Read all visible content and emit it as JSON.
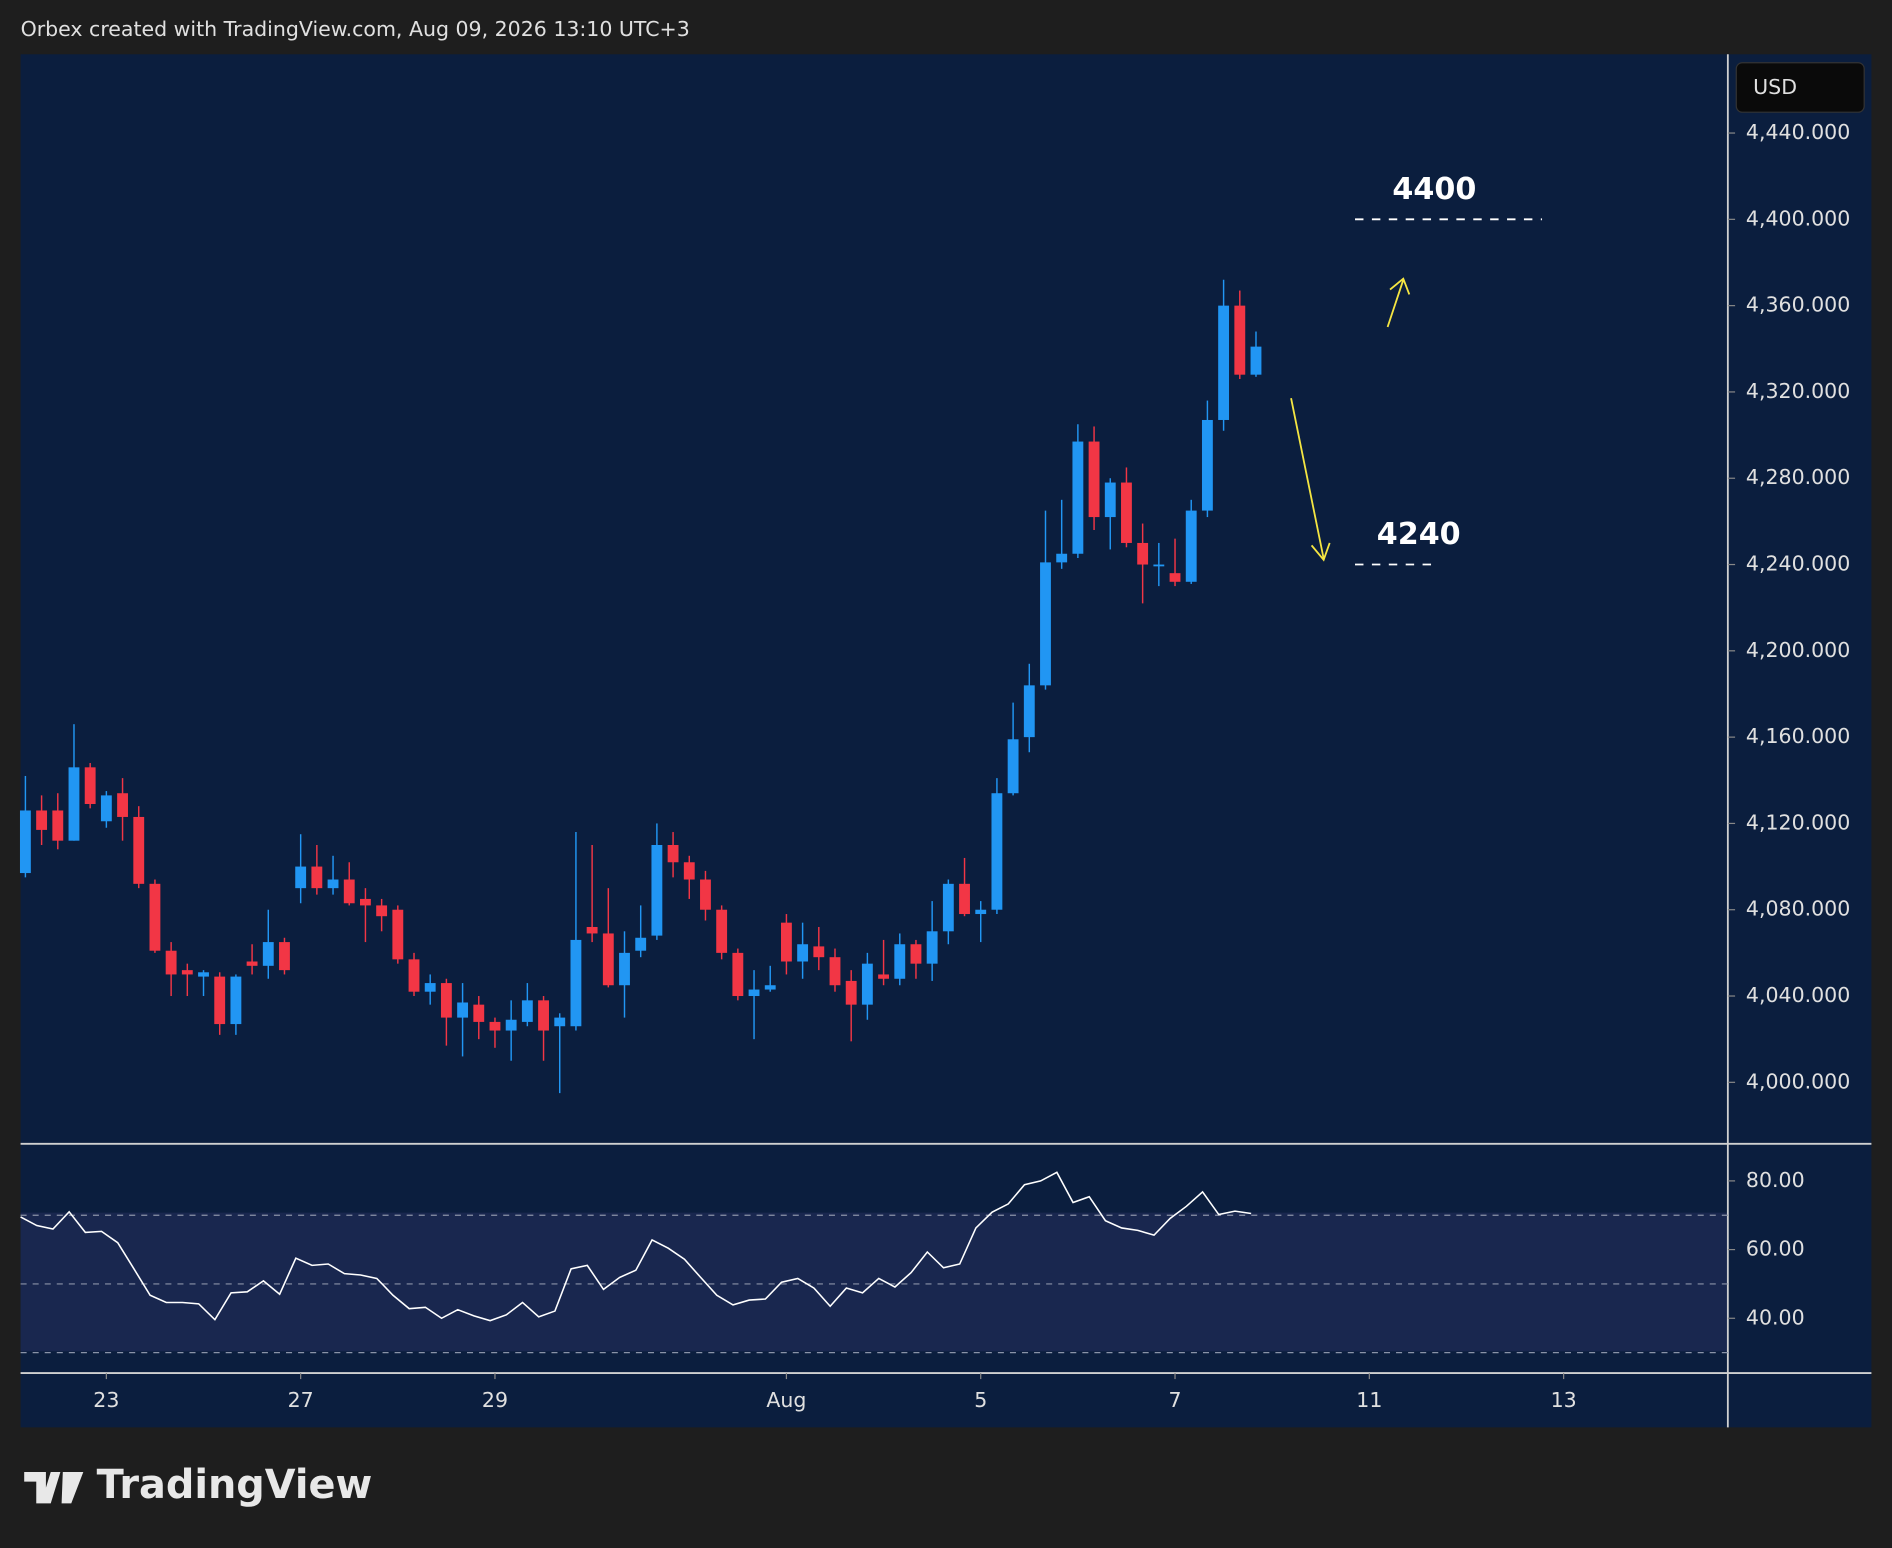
{
  "header": {
    "caption": "Orbex created with TradingView.com, Aug 09, 2026 13:10 UTC+3",
    "currency": "USD",
    "brand": "TradingView"
  },
  "chart_data": [
    {
      "type": "candlestick",
      "up_color": "#2196f3",
      "down_color": "#f23645",
      "open": [
        4097,
        4126,
        4126,
        4112,
        4146,
        4121,
        4134,
        4123,
        4092,
        4061,
        4052,
        4049,
        4049,
        4027,
        4056,
        4054,
        4065,
        4090,
        4100,
        4090,
        4094,
        4085,
        4082,
        4080,
        4057,
        4042,
        4046,
        4030,
        4036,
        4028,
        4024,
        4028,
        4038,
        4026,
        4026,
        4072,
        4069,
        4045,
        4061,
        4068,
        4110,
        4102,
        4094,
        4080,
        4060,
        4040,
        4043,
        4074,
        4056,
        4063,
        4058,
        4047,
        4036,
        4050,
        4048,
        4064,
        4055,
        4070,
        4092,
        4078,
        4080,
        4134,
        4160,
        4184,
        4241,
        4245,
        4297,
        4262,
        4278,
        4250,
        4240,
        4236,
        4232,
        4265,
        4307,
        4360,
        4328
      ],
      "high": [
        4142,
        4133,
        4134,
        4166,
        4148,
        4135,
        4141,
        4128,
        4094,
        4065,
        4055,
        4052,
        4051,
        4050,
        4064,
        4080,
        4067,
        4115,
        4110,
        4105,
        4102,
        4090,
        4085,
        4082,
        4060,
        4050,
        4048,
        4046,
        4040,
        4030,
        4038,
        4046,
        4040,
        4032,
        4116,
        4110,
        4090,
        4070,
        4082,
        4120,
        4116,
        4105,
        4098,
        4082,
        4062,
        4052,
        4054,
        4078,
        4074,
        4072,
        4062,
        4052,
        4060,
        4066,
        4069,
        4066,
        4084,
        4094,
        4104,
        4084,
        4141,
        4176,
        4194,
        4265,
        4270,
        4305,
        4304,
        4280,
        4285,
        4259,
        4250,
        4252,
        4270,
        4316,
        4372,
        4367,
        4348
      ],
      "low": [
        4095,
        4110,
        4108,
        4112,
        4127,
        4118,
        4112,
        4090,
        4060,
        4040,
        4040,
        4040,
        4022,
        4022,
        4050,
        4048,
        4050,
        4083,
        4087,
        4087,
        4082,
        4065,
        4070,
        4055,
        4040,
        4036,
        4017,
        4012,
        4020,
        4016,
        4010,
        4026,
        4010,
        3995,
        4024,
        4065,
        4044,
        4030,
        4058,
        4066,
        4095,
        4085,
        4075,
        4057,
        4038,
        4020,
        4042,
        4050,
        4048,
        4052,
        4042,
        4019,
        4029,
        4045,
        4045,
        4048,
        4047,
        4064,
        4077,
        4065,
        4078,
        4133,
        4153,
        4182,
        4238,
        4243,
        4256,
        4247,
        4248,
        4222,
        4230,
        4230,
        4231,
        4262,
        4302,
        4326,
        4327
      ],
      "close": [
        4126,
        4117,
        4112,
        4146,
        4129,
        4133,
        4123,
        4092,
        4061,
        4050,
        4050,
        4051,
        4027,
        4049,
        4054,
        4065,
        4052,
        4100,
        4090,
        4094,
        4083,
        4082,
        4077,
        4057,
        4042,
        4046,
        4030,
        4037,
        4028,
        4024,
        4029,
        4038,
        4024,
        4030,
        4066,
        4069,
        4045,
        4060,
        4067,
        4110,
        4102,
        4094,
        4080,
        4060,
        4040,
        4043,
        4045,
        4056,
        4064,
        4058,
        4045,
        4036,
        4055,
        4048,
        4064,
        4055,
        4070,
        4092,
        4078,
        4080,
        4134,
        4159,
        4184,
        4241,
        4245,
        4297,
        4262,
        4278,
        4250,
        4240,
        4240,
        4232,
        4265,
        4307,
        4360,
        4328,
        4341
      ],
      "ylim": [
        3971.5,
        4476.5
      ],
      "yticks": [
        {
          "value": 4000,
          "label": "4,000.000"
        },
        {
          "value": 4040,
          "label": "4,040.000"
        },
        {
          "value": 4080,
          "label": "4,080.000"
        },
        {
          "value": 4120,
          "label": "4,120.000"
        },
        {
          "value": 4160,
          "label": "4,160.000"
        },
        {
          "value": 4200,
          "label": "4,200.000"
        },
        {
          "value": 4240,
          "label": "4,240.000"
        },
        {
          "value": 4280,
          "label": "4,280.000"
        },
        {
          "value": 4320,
          "label": "4,320.000"
        },
        {
          "value": 4360,
          "label": "4,360.000"
        },
        {
          "value": 4400,
          "label": "4,400.000"
        },
        {
          "value": 4440,
          "label": "4,440.000"
        }
      ],
      "xticks": [
        {
          "value": 5,
          "label": "23"
        },
        {
          "value": 17,
          "label": "27"
        },
        {
          "value": 29,
          "label": "29"
        },
        {
          "value": 47,
          "label": "Aug"
        },
        {
          "value": 59,
          "label": "5"
        },
        {
          "value": 71,
          "label": "7"
        },
        {
          "value": 83,
          "label": "11"
        },
        {
          "value": 95,
          "label": "13"
        }
      ],
      "levels": [
        {
          "value": 4400,
          "label": "4400"
        },
        {
          "value": 4240,
          "label": "4240"
        }
      ]
    },
    {
      "type": "line",
      "color": "#ffffff",
      "values": [
        69.5,
        67,
        66,
        71,
        65,
        65.3,
        62,
        54.4,
        46.7,
        44.6,
        44.6,
        44.2,
        39.6,
        47.4,
        47.7,
        50.9,
        47,
        57.5,
        55.4,
        55.8,
        53,
        52.6,
        51.6,
        46.7,
        42.8,
        43.2,
        40,
        42.5,
        40.7,
        39.3,
        41,
        44.6,
        40.4,
        42.1,
        54.4,
        55.4,
        48.4,
        51.9,
        54,
        62.8,
        60.4,
        57.2,
        51.9,
        46.7,
        43.9,
        45.3,
        45.6,
        50.5,
        51.6,
        48.8,
        43.5,
        48.8,
        47.4,
        51.6,
        49.1,
        53.3,
        59.3,
        54.7,
        55.8,
        66.3,
        70.9,
        73.3,
        78.9,
        80,
        82.5,
        73.7,
        75.4,
        68.4,
        66.3,
        65.6,
        64.2,
        69.1,
        72.6,
        76.8,
        70.2,
        71.2,
        70.5
      ],
      "ylim": [
        24.4,
        90.1
      ],
      "yticks": [
        {
          "value": 40,
          "label": "40.00"
        },
        {
          "value": 60,
          "label": "60.00"
        },
        {
          "value": 80,
          "label": "80.00"
        }
      ],
      "bands": [
        30,
        50,
        70
      ]
    }
  ]
}
